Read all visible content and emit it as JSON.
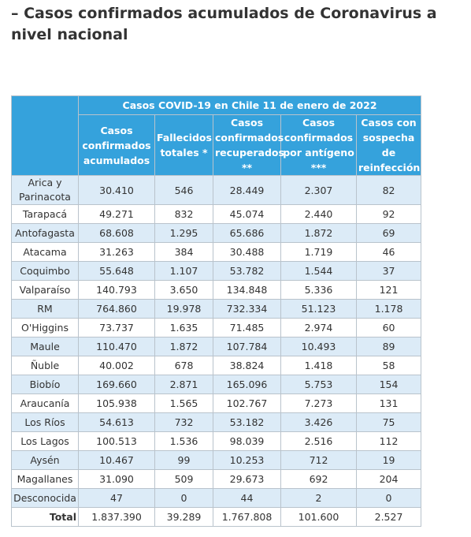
{
  "header": {
    "title": "– Casos confirmados acumulados de Coronavirus a nivel nacional"
  },
  "table": {
    "caption": "Casos COVID-19 en Chile 11 de enero de 2022",
    "columns": [
      "Casos confirmados acumulados",
      "Fallecidos totales *",
      "Casos confirmados recuperados **",
      "Casos confirmados por antígeno ***",
      "Casos con sospecha de reinfección"
    ],
    "rows": [
      [
        "Arica y Parinacota",
        "30.410",
        "546",
        "28.449",
        "2.307",
        "82"
      ],
      [
        "Tarapacá",
        "49.271",
        "832",
        "45.074",
        "2.440",
        "92"
      ],
      [
        "Antofagasta",
        "68.608",
        "1.295",
        "65.686",
        "1.872",
        "69"
      ],
      [
        "Atacama",
        "31.263",
        "384",
        "30.488",
        "1.719",
        "46"
      ],
      [
        "Coquimbo",
        "55.648",
        "1.107",
        "53.782",
        "1.544",
        "37"
      ],
      [
        "Valparaíso",
        "140.793",
        "3.650",
        "134.848",
        "5.336",
        "121"
      ],
      [
        "RM",
        "764.860",
        "19.978",
        "732.334",
        "51.123",
        "1.178"
      ],
      [
        "O'Higgins",
        "73.737",
        "1.635",
        "71.485",
        "2.974",
        "60"
      ],
      [
        "Maule",
        "110.470",
        "1.872",
        "107.784",
        "10.493",
        "89"
      ],
      [
        "Ñuble",
        "40.002",
        "678",
        "38.824",
        "1.418",
        "58"
      ],
      [
        "Biobío",
        "169.660",
        "2.871",
        "165.096",
        "5.753",
        "154"
      ],
      [
        "Araucanía",
        "105.938",
        "1.565",
        "102.767",
        "7.273",
        "131"
      ],
      [
        "Los Ríos",
        "54.613",
        "732",
        "53.182",
        "3.426",
        "75"
      ],
      [
        "Los Lagos",
        "100.513",
        "1.536",
        "98.039",
        "2.516",
        "112"
      ],
      [
        "Aysén",
        "10.467",
        "99",
        "10.253",
        "712",
        "19"
      ],
      [
        "Magallanes",
        "31.090",
        "509",
        "29.673",
        "692",
        "204"
      ],
      [
        "Desconocida",
        "47",
        "0",
        "44",
        "2",
        "0"
      ]
    ],
    "total": [
      "Total",
      "1.837.390",
      "39.289",
      "1.767.808",
      "101.600",
      "2.527"
    ]
  }
}
